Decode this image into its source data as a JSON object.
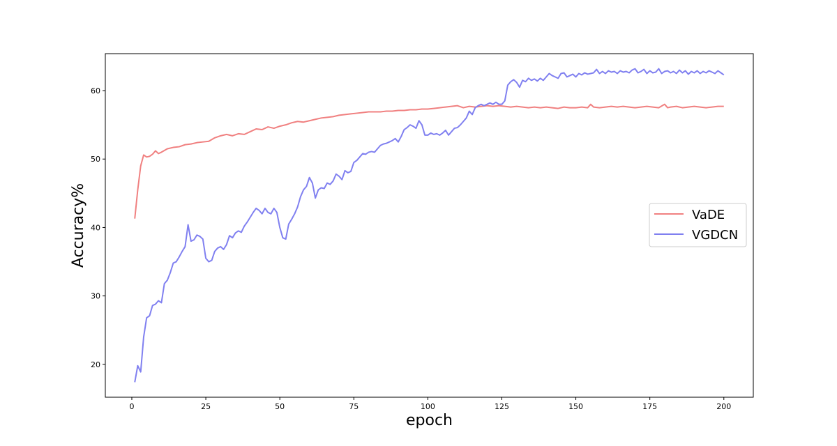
{
  "chart_data": {
    "type": "line",
    "title": "",
    "xlabel": "epoch",
    "ylabel": "Accuracy%",
    "xlim": [
      -8.95,
      209.95
    ],
    "ylim": [
      15.2,
      65.4
    ],
    "xticks": [
      0,
      25,
      50,
      75,
      100,
      125,
      150,
      175,
      200
    ],
    "yticks": [
      20,
      30,
      40,
      50,
      60
    ],
    "grid": false,
    "legend_position": "center-right",
    "series": [
      {
        "name": "VaDE",
        "color": "#f08080",
        "points": [
          [
            1,
            41.3
          ],
          [
            2,
            45.5
          ],
          [
            3,
            49
          ],
          [
            4,
            50.6
          ],
          [
            5,
            50.3
          ],
          [
            6,
            50.4
          ],
          [
            7,
            50.7
          ],
          [
            8,
            51.2
          ],
          [
            9,
            50.8
          ],
          [
            10,
            51
          ],
          [
            12,
            51.5
          ],
          [
            14,
            51.7
          ],
          [
            16,
            51.8
          ],
          [
            18,
            52.1
          ],
          [
            20,
            52.2
          ],
          [
            22,
            52.4
          ],
          [
            24,
            52.5
          ],
          [
            26,
            52.6
          ],
          [
            28,
            53.1
          ],
          [
            30,
            53.4
          ],
          [
            32,
            53.6
          ],
          [
            34,
            53.4
          ],
          [
            36,
            53.7
          ],
          [
            38,
            53.6
          ],
          [
            40,
            54
          ],
          [
            42,
            54.4
          ],
          [
            44,
            54.3
          ],
          [
            46,
            54.7
          ],
          [
            48,
            54.5
          ],
          [
            50,
            54.8
          ],
          [
            52,
            55
          ],
          [
            54,
            55.3
          ],
          [
            56,
            55.5
          ],
          [
            58,
            55.4
          ],
          [
            60,
            55.6
          ],
          [
            62,
            55.8
          ],
          [
            64,
            56
          ],
          [
            66,
            56.1
          ],
          [
            68,
            56.2
          ],
          [
            70,
            56.4
          ],
          [
            72,
            56.5
          ],
          [
            74,
            56.6
          ],
          [
            76,
            56.7
          ],
          [
            78,
            56.8
          ],
          [
            80,
            56.9
          ],
          [
            82,
            56.9
          ],
          [
            84,
            56.9
          ],
          [
            86,
            57
          ],
          [
            88,
            57
          ],
          [
            90,
            57.1
          ],
          [
            92,
            57.1
          ],
          [
            94,
            57.2
          ],
          [
            96,
            57.2
          ],
          [
            98,
            57.3
          ],
          [
            100,
            57.3
          ],
          [
            102,
            57.4
          ],
          [
            104,
            57.5
          ],
          [
            106,
            57.6
          ],
          [
            108,
            57.7
          ],
          [
            110,
            57.8
          ],
          [
            112,
            57.5
          ],
          [
            114,
            57.7
          ],
          [
            116,
            57.6
          ],
          [
            118,
            57.7
          ],
          [
            120,
            57.8
          ],
          [
            122,
            57.7
          ],
          [
            124,
            57.8
          ],
          [
            126,
            57.7
          ],
          [
            128,
            57.6
          ],
          [
            130,
            57.7
          ],
          [
            132,
            57.6
          ],
          [
            134,
            57.5
          ],
          [
            136,
            57.6
          ],
          [
            138,
            57.5
          ],
          [
            140,
            57.6
          ],
          [
            142,
            57.5
          ],
          [
            144,
            57.4
          ],
          [
            146,
            57.6
          ],
          [
            148,
            57.5
          ],
          [
            150,
            57.5
          ],
          [
            152,
            57.6
          ],
          [
            154,
            57.5
          ],
          [
            155,
            58
          ],
          [
            156,
            57.6
          ],
          [
            158,
            57.5
          ],
          [
            160,
            57.6
          ],
          [
            162,
            57.7
          ],
          [
            164,
            57.6
          ],
          [
            166,
            57.7
          ],
          [
            168,
            57.6
          ],
          [
            170,
            57.5
          ],
          [
            172,
            57.6
          ],
          [
            174,
            57.7
          ],
          [
            176,
            57.6
          ],
          [
            178,
            57.5
          ],
          [
            180,
            58
          ],
          [
            181,
            57.5
          ],
          [
            182,
            57.6
          ],
          [
            184,
            57.7
          ],
          [
            186,
            57.5
          ],
          [
            188,
            57.6
          ],
          [
            190,
            57.7
          ],
          [
            192,
            57.6
          ],
          [
            194,
            57.5
          ],
          [
            196,
            57.6
          ],
          [
            198,
            57.7
          ],
          [
            200,
            57.7
          ]
        ]
      },
      {
        "name": "VGDCN",
        "color": "#8080f0",
        "points": [
          [
            1,
            17.4
          ],
          [
            2,
            19.8
          ],
          [
            3,
            18.9
          ],
          [
            4,
            24
          ],
          [
            5,
            26.8
          ],
          [
            6,
            27.1
          ],
          [
            7,
            28.6
          ],
          [
            8,
            28.8
          ],
          [
            9,
            29.3
          ],
          [
            10,
            29
          ],
          [
            11,
            31.8
          ],
          [
            12,
            32.3
          ],
          [
            13,
            33.4
          ],
          [
            14,
            34.8
          ],
          [
            15,
            35
          ],
          [
            16,
            35.7
          ],
          [
            17,
            36.5
          ],
          [
            18,
            37.2
          ],
          [
            19,
            40.4
          ],
          [
            20,
            38
          ],
          [
            21,
            38.2
          ],
          [
            22,
            38.9
          ],
          [
            23,
            38.7
          ],
          [
            24,
            38.3
          ],
          [
            25,
            35.5
          ],
          [
            26,
            35
          ],
          [
            27,
            35.2
          ],
          [
            28,
            36.5
          ],
          [
            29,
            37
          ],
          [
            30,
            37.2
          ],
          [
            31,
            36.8
          ],
          [
            32,
            37.5
          ],
          [
            33,
            38.8
          ],
          [
            34,
            38.5
          ],
          [
            35,
            39.2
          ],
          [
            36,
            39.5
          ],
          [
            37,
            39.3
          ],
          [
            38,
            40.2
          ],
          [
            39,
            40.8
          ],
          [
            40,
            41.5
          ],
          [
            41,
            42.2
          ],
          [
            42,
            42.8
          ],
          [
            43,
            42.5
          ],
          [
            44,
            42
          ],
          [
            45,
            42.8
          ],
          [
            46,
            42.2
          ],
          [
            47,
            42
          ],
          [
            48,
            42.8
          ],
          [
            49,
            42.2
          ],
          [
            50,
            40
          ],
          [
            51,
            38.5
          ],
          [
            52,
            38.3
          ],
          [
            53,
            40.5
          ],
          [
            54,
            41.2
          ],
          [
            55,
            42
          ],
          [
            56,
            43
          ],
          [
            57,
            44.5
          ],
          [
            58,
            45.5
          ],
          [
            59,
            46
          ],
          [
            60,
            47.3
          ],
          [
            61,
            46.5
          ],
          [
            62,
            44.3
          ],
          [
            63,
            45.5
          ],
          [
            64,
            45.8
          ],
          [
            65,
            45.7
          ],
          [
            66,
            46.5
          ],
          [
            67,
            46.3
          ],
          [
            68,
            46.8
          ],
          [
            69,
            47.8
          ],
          [
            70,
            47.5
          ],
          [
            71,
            47
          ],
          [
            72,
            48.3
          ],
          [
            73,
            48
          ],
          [
            74,
            48.2
          ],
          [
            75,
            49.5
          ],
          [
            76,
            49.8
          ],
          [
            77,
            50.3
          ],
          [
            78,
            50.8
          ],
          [
            79,
            50.7
          ],
          [
            80,
            51
          ],
          [
            81,
            51.1
          ],
          [
            82,
            51
          ],
          [
            83,
            51.5
          ],
          [
            84,
            52
          ],
          [
            85,
            52.2
          ],
          [
            86,
            52.3
          ],
          [
            87,
            52.5
          ],
          [
            88,
            52.7
          ],
          [
            89,
            53
          ],
          [
            90,
            52.5
          ],
          [
            91,
            53.3
          ],
          [
            92,
            54.3
          ],
          [
            93,
            54.6
          ],
          [
            94,
            55
          ],
          [
            95,
            54.8
          ],
          [
            96,
            54.5
          ],
          [
            97,
            55.6
          ],
          [
            98,
            55
          ],
          [
            99,
            53.5
          ],
          [
            100,
            53.5
          ],
          [
            101,
            53.8
          ],
          [
            102,
            53.6
          ],
          [
            103,
            53.7
          ],
          [
            104,
            53.5
          ],
          [
            105,
            53.8
          ],
          [
            106,
            54.2
          ],
          [
            107,
            53.5
          ],
          [
            108,
            54
          ],
          [
            109,
            54.5
          ],
          [
            110,
            54.6
          ],
          [
            111,
            55
          ],
          [
            112,
            55.5
          ],
          [
            113,
            56
          ],
          [
            114,
            57
          ],
          [
            115,
            56.5
          ],
          [
            116,
            57.5
          ],
          [
            117,
            57.8
          ],
          [
            118,
            58
          ],
          [
            119,
            57.8
          ],
          [
            120,
            58
          ],
          [
            121,
            58.2
          ],
          [
            122,
            58
          ],
          [
            123,
            58.3
          ],
          [
            124,
            58
          ],
          [
            125,
            58
          ],
          [
            126,
            58.5
          ],
          [
            127,
            60.8
          ],
          [
            128,
            61.3
          ],
          [
            129,
            61.6
          ],
          [
            130,
            61.2
          ],
          [
            131,
            60.5
          ],
          [
            132,
            61.5
          ],
          [
            133,
            61.3
          ],
          [
            134,
            61.8
          ],
          [
            135,
            61.5
          ],
          [
            136,
            61.7
          ],
          [
            137,
            61.4
          ],
          [
            138,
            61.8
          ],
          [
            139,
            61.5
          ],
          [
            140,
            62
          ],
          [
            141,
            62.5
          ],
          [
            142,
            62.2
          ],
          [
            143,
            62
          ],
          [
            144,
            61.8
          ],
          [
            145,
            62.5
          ],
          [
            146,
            62.6
          ],
          [
            147,
            62
          ],
          [
            148,
            62.2
          ],
          [
            149,
            62.4
          ],
          [
            150,
            62
          ],
          [
            151,
            62.5
          ],
          [
            152,
            62.3
          ],
          [
            153,
            62.6
          ],
          [
            154,
            62.4
          ],
          [
            155,
            62.5
          ],
          [
            156,
            62.6
          ],
          [
            157,
            63.1
          ],
          [
            158,
            62.5
          ],
          [
            159,
            62.8
          ],
          [
            160,
            62.5
          ],
          [
            161,
            62.9
          ],
          [
            162,
            62.7
          ],
          [
            163,
            62.8
          ],
          [
            164,
            62.5
          ],
          [
            165,
            62.9
          ],
          [
            166,
            62.7
          ],
          [
            167,
            62.8
          ],
          [
            168,
            62.6
          ],
          [
            169,
            63
          ],
          [
            170,
            63.2
          ],
          [
            171,
            62.6
          ],
          [
            172,
            62.8
          ],
          [
            173,
            63.1
          ],
          [
            174,
            62.5
          ],
          [
            175,
            62.9
          ],
          [
            176,
            62.6
          ],
          [
            177,
            62.7
          ],
          [
            178,
            63.2
          ],
          [
            179,
            62.5
          ],
          [
            180,
            62.8
          ],
          [
            181,
            62.9
          ],
          [
            182,
            62.6
          ],
          [
            183,
            62.8
          ],
          [
            184,
            62.5
          ],
          [
            185,
            63
          ],
          [
            186,
            62.6
          ],
          [
            187,
            62.9
          ],
          [
            188,
            62.4
          ],
          [
            189,
            62.8
          ],
          [
            190,
            62.6
          ],
          [
            191,
            62.9
          ],
          [
            192,
            62.5
          ],
          [
            193,
            62.8
          ],
          [
            194,
            62.6
          ],
          [
            195,
            62.9
          ],
          [
            196,
            62.7
          ],
          [
            197,
            62.5
          ],
          [
            198,
            62.9
          ],
          [
            199,
            62.6
          ],
          [
            200,
            62.3
          ]
        ]
      }
    ]
  }
}
